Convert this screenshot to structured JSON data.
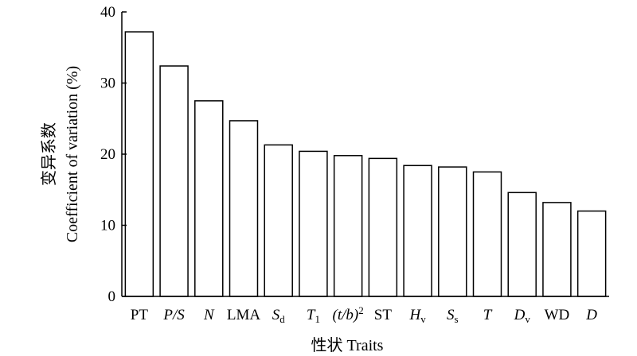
{
  "chart_data": {
    "type": "bar",
    "xlabel": "性状 Traits",
    "ylabel_zh": "变异系数",
    "ylabel_en": "Coefficient of variation (%)",
    "ylim": [
      0,
      40
    ],
    "yticks": [
      "0",
      "10",
      "20",
      "30",
      "40"
    ],
    "grid": false,
    "categories": [
      {
        "base": "PT",
        "italic": false
      },
      {
        "base": "P/S",
        "italic": true
      },
      {
        "base": "N",
        "italic": true
      },
      {
        "base": "LMA",
        "italic": false
      },
      {
        "base": "S",
        "italic": true,
        "sub": "d"
      },
      {
        "base": "T",
        "italic": true,
        "sub": "1"
      },
      {
        "base": "(t/b)",
        "italic": true,
        "sup": "2"
      },
      {
        "base": "ST",
        "italic": false
      },
      {
        "base": "H",
        "italic": true,
        "sub": "v"
      },
      {
        "base": "S",
        "italic": true,
        "sub": "s"
      },
      {
        "base": "T",
        "italic": true
      },
      {
        "base": "D",
        "italic": true,
        "sub": "v"
      },
      {
        "base": "WD",
        "italic": false
      },
      {
        "base": "D",
        "italic": true
      }
    ],
    "values": [
      37.2,
      32.4,
      27.5,
      24.7,
      21.3,
      20.4,
      19.8,
      19.4,
      18.4,
      18.2,
      17.5,
      14.6,
      13.2,
      12.0
    ],
    "bar_fill": "#ffffff",
    "bar_stroke": "#000000"
  }
}
